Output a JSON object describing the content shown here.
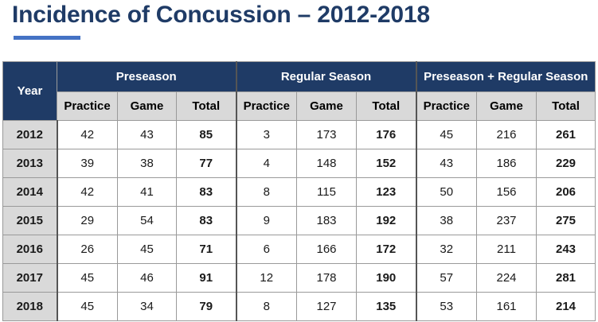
{
  "title": "Incidence of Concussion – 2012-2018",
  "table": {
    "year_header": "Year",
    "groups": [
      "Preseason",
      "Regular Season",
      "Preseason + Regular Season"
    ],
    "subheaders": [
      "Practice",
      "Game",
      "Total"
    ],
    "rows": [
      {
        "year": "2012",
        "values": [
          "42",
          "43",
          "85",
          "3",
          "173",
          "176",
          "45",
          "216",
          "261"
        ]
      },
      {
        "year": "2013",
        "values": [
          "39",
          "38",
          "77",
          "4",
          "148",
          "152",
          "43",
          "186",
          "229"
        ]
      },
      {
        "year": "2014",
        "values": [
          "42",
          "41",
          "83",
          "8",
          "115",
          "123",
          "50",
          "156",
          "206"
        ]
      },
      {
        "year": "2015",
        "values": [
          "29",
          "54",
          "83",
          "9",
          "183",
          "192",
          "38",
          "237",
          "275"
        ]
      },
      {
        "year": "2016",
        "values": [
          "26",
          "45",
          "71",
          "6",
          "166",
          "172",
          "32",
          "211",
          "243"
        ]
      },
      {
        "year": "2017",
        "values": [
          "45",
          "46",
          "91",
          "12",
          "178",
          "190",
          "57",
          "224",
          "281"
        ]
      },
      {
        "year": "2018",
        "values": [
          "45",
          "34",
          "79",
          "8",
          "127",
          "135",
          "53",
          "161",
          "214"
        ]
      }
    ]
  },
  "colors": {
    "title": "#1f3b66",
    "header_bg": "#1f3b66",
    "subheader_bg": "#d9d9d9",
    "accent_bar": "#4472c4"
  }
}
